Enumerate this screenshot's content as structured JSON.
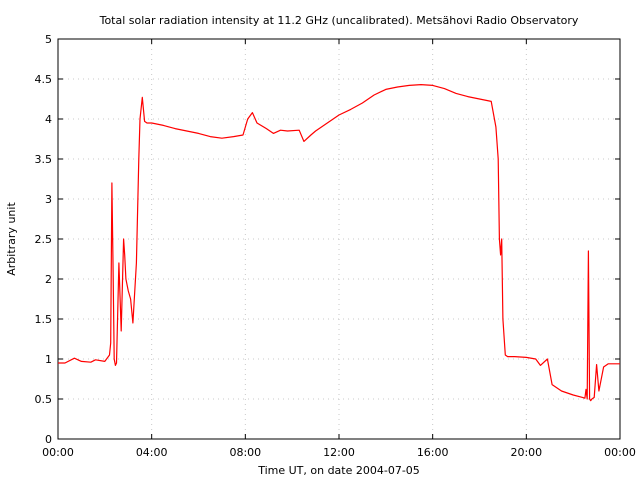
{
  "chart_data": {
    "type": "line",
    "title": "Total solar radiation intensity at 11.2 GHz (uncalibrated). Metsähovi Radio Observatory",
    "xlabel": "Time UT, on date 2004-07-05",
    "ylabel": "Arbitrary unit",
    "xlim": [
      0,
      24
    ],
    "ylim": [
      0,
      5
    ],
    "x_ticks": [
      0,
      4,
      8,
      12,
      16,
      20,
      24
    ],
    "x_tick_labels": [
      "00:00",
      "04:00",
      "08:00",
      "12:00",
      "16:00",
      "20:00",
      "00:00"
    ],
    "y_ticks": [
      0,
      0.5,
      1,
      1.5,
      2,
      2.5,
      3,
      3.5,
      4,
      4.5,
      5
    ],
    "y_tick_labels": [
      "0",
      "0.5",
      "1",
      "1.5",
      "2",
      "2.5",
      "3",
      "3.5",
      "4",
      "4.5",
      "5"
    ],
    "grid": true,
    "color": "#ff0000",
    "series": [
      {
        "x": [
          0,
          0.3,
          0.7,
          1.0,
          1.4,
          1.6,
          2.0,
          2.2,
          2.25,
          2.3,
          2.35,
          2.4,
          2.45,
          2.5,
          2.6,
          2.7,
          2.8,
          2.85,
          2.9,
          3.0,
          3.1,
          3.2,
          3.35,
          3.45,
          3.5,
          3.6,
          3.7,
          3.8,
          4.0,
          4.5,
          5.0,
          5.5,
          6.0,
          6.5,
          7.0,
          7.5,
          7.9,
          8.1,
          8.3,
          8.5,
          8.9,
          9.2,
          9.5,
          9.8,
          10.3,
          10.5,
          10.8,
          11.0,
          11.5,
          12.0,
          12.5,
          13.0,
          13.5,
          14.0,
          14.5,
          15.0,
          15.5,
          16.0,
          16.5,
          17.0,
          17.5,
          18.0,
          18.5,
          18.7,
          18.8,
          18.85,
          18.9,
          18.95,
          19.0,
          19.1,
          19.2,
          19.5,
          20.0,
          20.4,
          20.6,
          20.9,
          21.1,
          21.5,
          22.0,
          22.4,
          22.5,
          22.55,
          22.6,
          22.65,
          22.7,
          22.75,
          22.8,
          22.9,
          23.0,
          23.1,
          23.3,
          23.5,
          24.0
        ],
        "values": [
          0.95,
          0.95,
          1.01,
          0.97,
          0.96,
          0.99,
          0.97,
          1.05,
          1.2,
          3.2,
          2.2,
          1.0,
          0.92,
          0.95,
          2.2,
          1.35,
          2.5,
          2.3,
          2.0,
          1.85,
          1.75,
          1.45,
          2.2,
          3.5,
          4.0,
          4.27,
          3.97,
          3.95,
          3.95,
          3.92,
          3.88,
          3.85,
          3.82,
          3.78,
          3.76,
          3.78,
          3.8,
          4.0,
          4.08,
          3.95,
          3.88,
          3.82,
          3.86,
          3.85,
          3.86,
          3.72,
          3.8,
          3.85,
          3.95,
          4.05,
          4.12,
          4.2,
          4.3,
          4.37,
          4.4,
          4.42,
          4.43,
          4.42,
          4.38,
          4.32,
          4.28,
          4.25,
          4.22,
          3.9,
          3.5,
          2.5,
          2.3,
          2.5,
          1.5,
          1.05,
          1.03,
          1.03,
          1.02,
          1.0,
          0.92,
          1.0,
          0.68,
          0.6,
          0.55,
          0.52,
          0.51,
          0.62,
          0.5,
          2.35,
          0.5,
          0.48,
          0.5,
          0.52,
          0.93,
          0.6,
          0.9,
          0.94,
          0.94
        ]
      }
    ]
  }
}
